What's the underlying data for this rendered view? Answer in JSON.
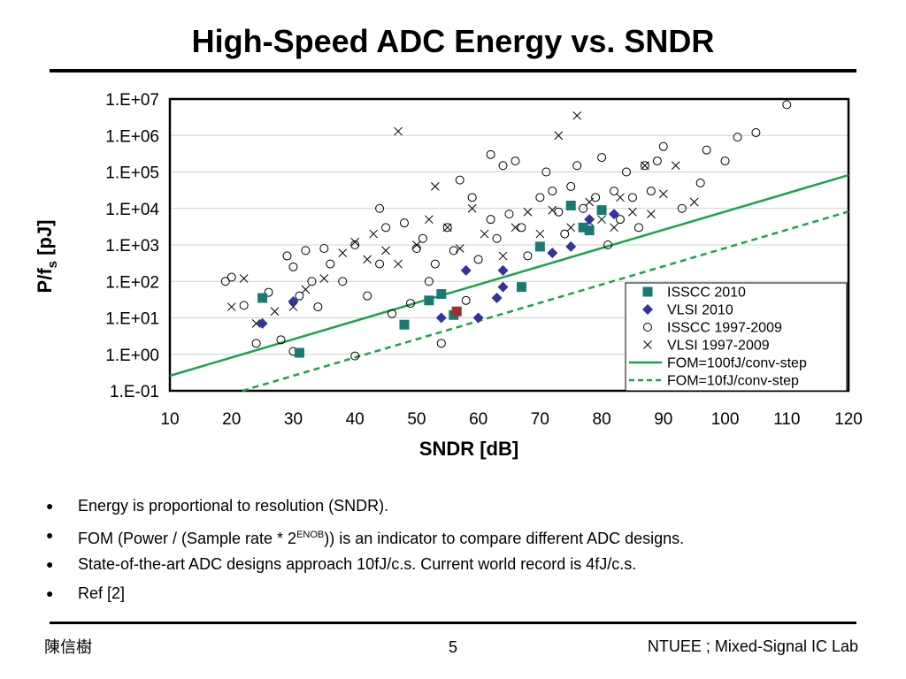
{
  "slide": {
    "title": "High-Speed ADC Energy vs. SNDR",
    "bullets": [
      {
        "pre": "Energy is proportional to resolution (SNDR).",
        "sup": "",
        "post": ""
      },
      {
        "pre": "FOM (Power / (Sample rate * 2",
        "sup": "ENOB",
        "post": ")) is an indicator to compare different  ADC designs."
      },
      {
        "pre": "State-of-the-art ADC designs approach 10fJ/c.s. Current world record is 4fJ/c.s.",
        "sup": "",
        "post": ""
      },
      {
        "pre": "Ref [2]",
        "sup": "",
        "post": ""
      }
    ],
    "bullet_glyph": "●",
    "footer_left": "陳信樹",
    "page_number": "5",
    "footer_right": "NTUEE ; Mixed-Signal IC Lab"
  },
  "chart_data": {
    "type": "scatter",
    "xlabel": "SNDR [dB]",
    "ylabel_main": "P/f",
    "ylabel_sub": "s",
    "ylabel_unit": " [pJ]",
    "xlim": [
      10,
      120
    ],
    "x_ticks": [
      10,
      20,
      30,
      40,
      50,
      60,
      70,
      80,
      90,
      100,
      110,
      120
    ],
    "y_scale": "log",
    "ylim_exp": [
      -1,
      7
    ],
    "y_tick_labels": [
      "1.E-01",
      "1.E+00",
      "1.E+01",
      "1.E+02",
      "1.E+03",
      "1.E+04",
      "1.E+05",
      "1.E+06",
      "1.E+07"
    ],
    "grid": "horizontal",
    "legend_position": "bottom-right",
    "colors": {
      "isscc2010": "#1a7a72",
      "vlsi2010": "#33339a",
      "record": "#a03030",
      "fom": "#1aa34a"
    },
    "series": [
      {
        "name": "ISSCC 2010",
        "marker": "square",
        "color": "#1a7a72",
        "points": [
          [
            25,
            35
          ],
          [
            31,
            1.1
          ],
          [
            48,
            6.5
          ],
          [
            52,
            30
          ],
          [
            54,
            45
          ],
          [
            56,
            12
          ],
          [
            67,
            70
          ],
          [
            70,
            900
          ],
          [
            75,
            12000
          ],
          [
            77,
            3000
          ],
          [
            78,
            2500
          ],
          [
            80,
            9000
          ]
        ]
      },
      {
        "name": "VLSI 2010",
        "marker": "diamond",
        "color": "#33339a",
        "points": [
          [
            25,
            7
          ],
          [
            30,
            28
          ],
          [
            54,
            10
          ],
          [
            58,
            200
          ],
          [
            60,
            10
          ],
          [
            63,
            35
          ],
          [
            64,
            70
          ],
          [
            64,
            200
          ],
          [
            72,
            600
          ],
          [
            75,
            900
          ],
          [
            78,
            5000
          ],
          [
            82,
            7000
          ]
        ]
      },
      {
        "name": "ISSCC 1997-2009",
        "marker": "circle",
        "points": [
          [
            19,
            100
          ],
          [
            20,
            130
          ],
          [
            22,
            22
          ],
          [
            24,
            2
          ],
          [
            26,
            50
          ],
          [
            28,
            2.5
          ],
          [
            29,
            500
          ],
          [
            30,
            1.2
          ],
          [
            30,
            250
          ],
          [
            31,
            40
          ],
          [
            32,
            700
          ],
          [
            33,
            100
          ],
          [
            34,
            20
          ],
          [
            35,
            800
          ],
          [
            36,
            300
          ],
          [
            38,
            100
          ],
          [
            40,
            0.9
          ],
          [
            40,
            1000
          ],
          [
            42,
            40
          ],
          [
            44,
            300
          ],
          [
            44,
            10000
          ],
          [
            45,
            3000
          ],
          [
            46,
            13
          ],
          [
            48,
            4000
          ],
          [
            49,
            25
          ],
          [
            50,
            800
          ],
          [
            51,
            1500
          ],
          [
            52,
            100
          ],
          [
            53,
            300
          ],
          [
            54,
            2
          ],
          [
            55,
            3000
          ],
          [
            56,
            700
          ],
          [
            57,
            60000
          ],
          [
            58,
            30
          ],
          [
            59,
            20000
          ],
          [
            60,
            400
          ],
          [
            62,
            300000
          ],
          [
            62,
            5000
          ],
          [
            63,
            1500
          ],
          [
            64,
            150000
          ],
          [
            65,
            7000
          ],
          [
            66,
            200000
          ],
          [
            67,
            3000
          ],
          [
            68,
            500
          ],
          [
            70,
            20000
          ],
          [
            71,
            100000
          ],
          [
            72,
            30000
          ],
          [
            73,
            8000
          ],
          [
            74,
            2000
          ],
          [
            75,
            40000
          ],
          [
            76,
            150000
          ],
          [
            77,
            10000
          ],
          [
            78,
            3000
          ],
          [
            79,
            20000
          ],
          [
            80,
            250000
          ],
          [
            81,
            1000
          ],
          [
            82,
            30000
          ],
          [
            83,
            5000
          ],
          [
            84,
            100000
          ],
          [
            85,
            20000
          ],
          [
            86,
            3000
          ],
          [
            87,
            150000
          ],
          [
            88,
            30000
          ],
          [
            89,
            200000
          ],
          [
            90,
            500000
          ],
          [
            93,
            10000
          ],
          [
            96,
            50000
          ],
          [
            97,
            400000
          ],
          [
            100,
            200000
          ],
          [
            102,
            900000
          ],
          [
            105,
            1200000
          ],
          [
            110,
            7000000
          ]
        ]
      },
      {
        "name": "VLSI 1997-2009",
        "marker": "x",
        "points": [
          [
            20,
            20
          ],
          [
            22,
            120
          ],
          [
            24,
            7
          ],
          [
            27,
            15
          ],
          [
            30,
            20
          ],
          [
            32,
            60
          ],
          [
            35,
            120
          ],
          [
            38,
            600
          ],
          [
            40,
            1200
          ],
          [
            42,
            400
          ],
          [
            43,
            2000
          ],
          [
            45,
            700
          ],
          [
            47,
            300
          ],
          [
            47,
            1300000
          ],
          [
            50,
            1000
          ],
          [
            52,
            5000
          ],
          [
            53,
            40000
          ],
          [
            55,
            3000
          ],
          [
            57,
            800
          ],
          [
            59,
            10000
          ],
          [
            61,
            2000
          ],
          [
            64,
            500
          ],
          [
            66,
            3000
          ],
          [
            68,
            8000
          ],
          [
            70,
            2000
          ],
          [
            72,
            9000
          ],
          [
            73,
            1000000
          ],
          [
            75,
            3000
          ],
          [
            76,
            3500000
          ],
          [
            78,
            15000
          ],
          [
            80,
            5000
          ],
          [
            82,
            3000
          ],
          [
            83,
            20000
          ],
          [
            85,
            8000
          ],
          [
            87,
            150000
          ],
          [
            88,
            7000
          ],
          [
            90,
            25000
          ],
          [
            92,
            150000
          ],
          [
            95,
            15000
          ]
        ]
      },
      {
        "name": "FOM=100fJ/conv-step",
        "kind": "line",
        "style": "solid",
        "color": "#1aa34a",
        "fom_fj": 100
      },
      {
        "name": "FOM=10fJ/conv-step",
        "kind": "line",
        "style": "dashed",
        "color": "#1aa34a",
        "fom_fj": 10
      }
    ],
    "record_point": {
      "x": 56.5,
      "y": 15,
      "color": "#a03030"
    }
  }
}
